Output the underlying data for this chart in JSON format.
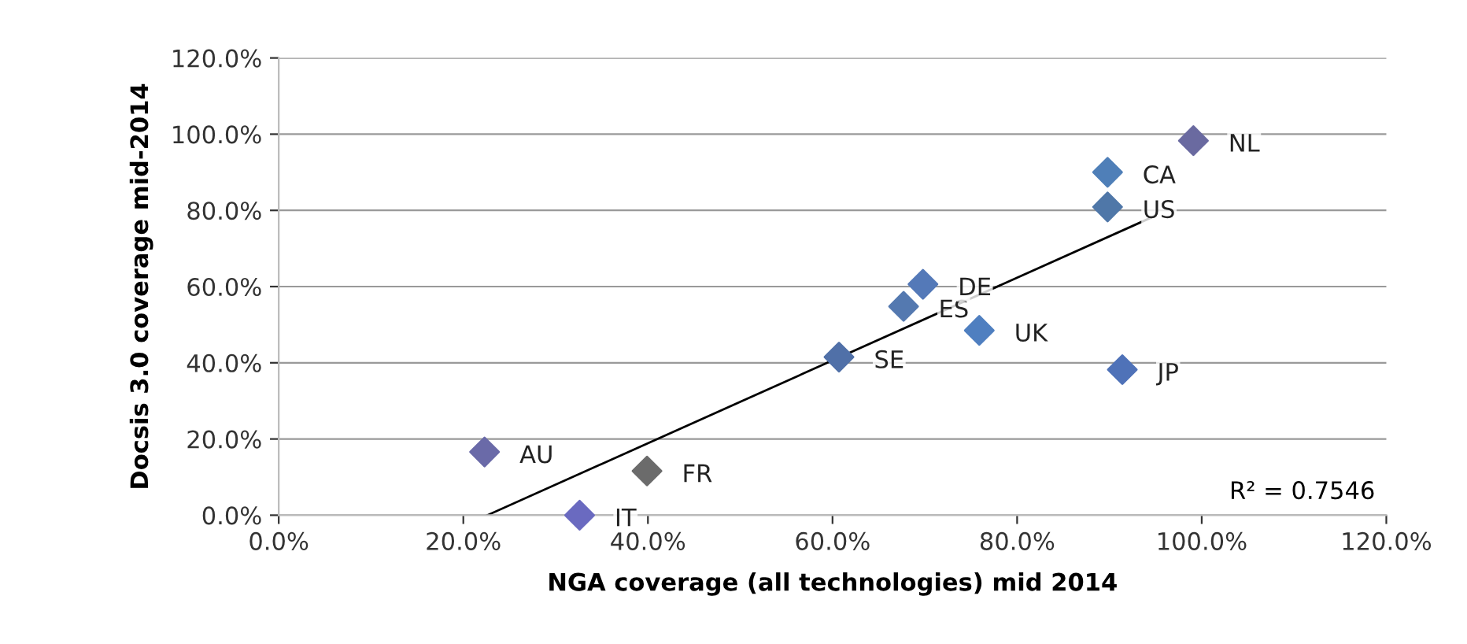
{
  "chart_data": {
    "type": "scatter",
    "xlabel": "NGA coverage (all technologies) mid 2014",
    "ylabel": "Docsis 3.0 coverage mid-2014",
    "xlim": [
      0,
      120
    ],
    "ylim": [
      0,
      120
    ],
    "xticks": [
      {
        "value": 0,
        "label": "0.0%"
      },
      {
        "value": 20,
        "label": "20.0%"
      },
      {
        "value": 40,
        "label": "40.0%"
      },
      {
        "value": 60,
        "label": "60.0%"
      },
      {
        "value": 80,
        "label": "80.0%"
      },
      {
        "value": 100,
        "label": "100.0%"
      },
      {
        "value": 120,
        "label": "120.0%"
      }
    ],
    "yticks": [
      {
        "value": 0,
        "label": "0.0%"
      },
      {
        "value": 20,
        "label": "20.0%"
      },
      {
        "value": 40,
        "label": "40.0%"
      },
      {
        "value": 60,
        "label": "60.0%"
      },
      {
        "value": 80,
        "label": "80.0%"
      },
      {
        "value": 100,
        "label": "100.0%"
      },
      {
        "value": 120,
        "label": "120.0%"
      }
    ],
    "grid": "y",
    "series": [
      {
        "marker": "diamond",
        "x": [
          22.3,
          32.6,
          39.9,
          60.7,
          67.7,
          69.8,
          75.9,
          91.4,
          89.8,
          89.8,
          99.1
        ],
        "values": [
          16.6,
          0,
          11.6,
          41.5,
          54.8,
          60.6,
          48.5,
          38.2,
          80.9,
          90.0,
          98.3
        ],
        "colors": [
          "#6a6aa8",
          "#6a6ac0",
          "#6b6b6b",
          "#5070a8",
          "#5479b0",
          "#5479b8",
          "#4f7fc0",
          "#4f72b8",
          "#4f77a8",
          "#4f7fb8",
          "#6a6aa0"
        ]
      },
      {
        "type": "line",
        "marker": "none",
        "color": "#000000",
        "x": [
          22.6,
          94.8
        ],
        "values": [
          0,
          78.4
        ]
      }
    ],
    "annotations": [
      {
        "text": "AU",
        "x": 22.3,
        "y": 16.6
      },
      {
        "text": "IT",
        "x": 32.6,
        "y": 0
      },
      {
        "text": "FR",
        "x": 39.9,
        "y": 11.6
      },
      {
        "text": "SE",
        "x": 60.7,
        "y": 41.5
      },
      {
        "text": "ES",
        "x": 67.7,
        "y": 54.8
      },
      {
        "text": "DE",
        "x": 69.8,
        "y": 60.6
      },
      {
        "text": "UK",
        "x": 75.9,
        "y": 48.5
      },
      {
        "text": "JP",
        "x": 91.4,
        "y": 38.2
      },
      {
        "text": "US",
        "x": 89.8,
        "y": 80.9
      },
      {
        "text": "CA",
        "x": 89.8,
        "y": 90.0
      },
      {
        "text": "NL",
        "x": 99.1,
        "y": 98.3
      },
      "R² = 0.7546"
    ]
  }
}
